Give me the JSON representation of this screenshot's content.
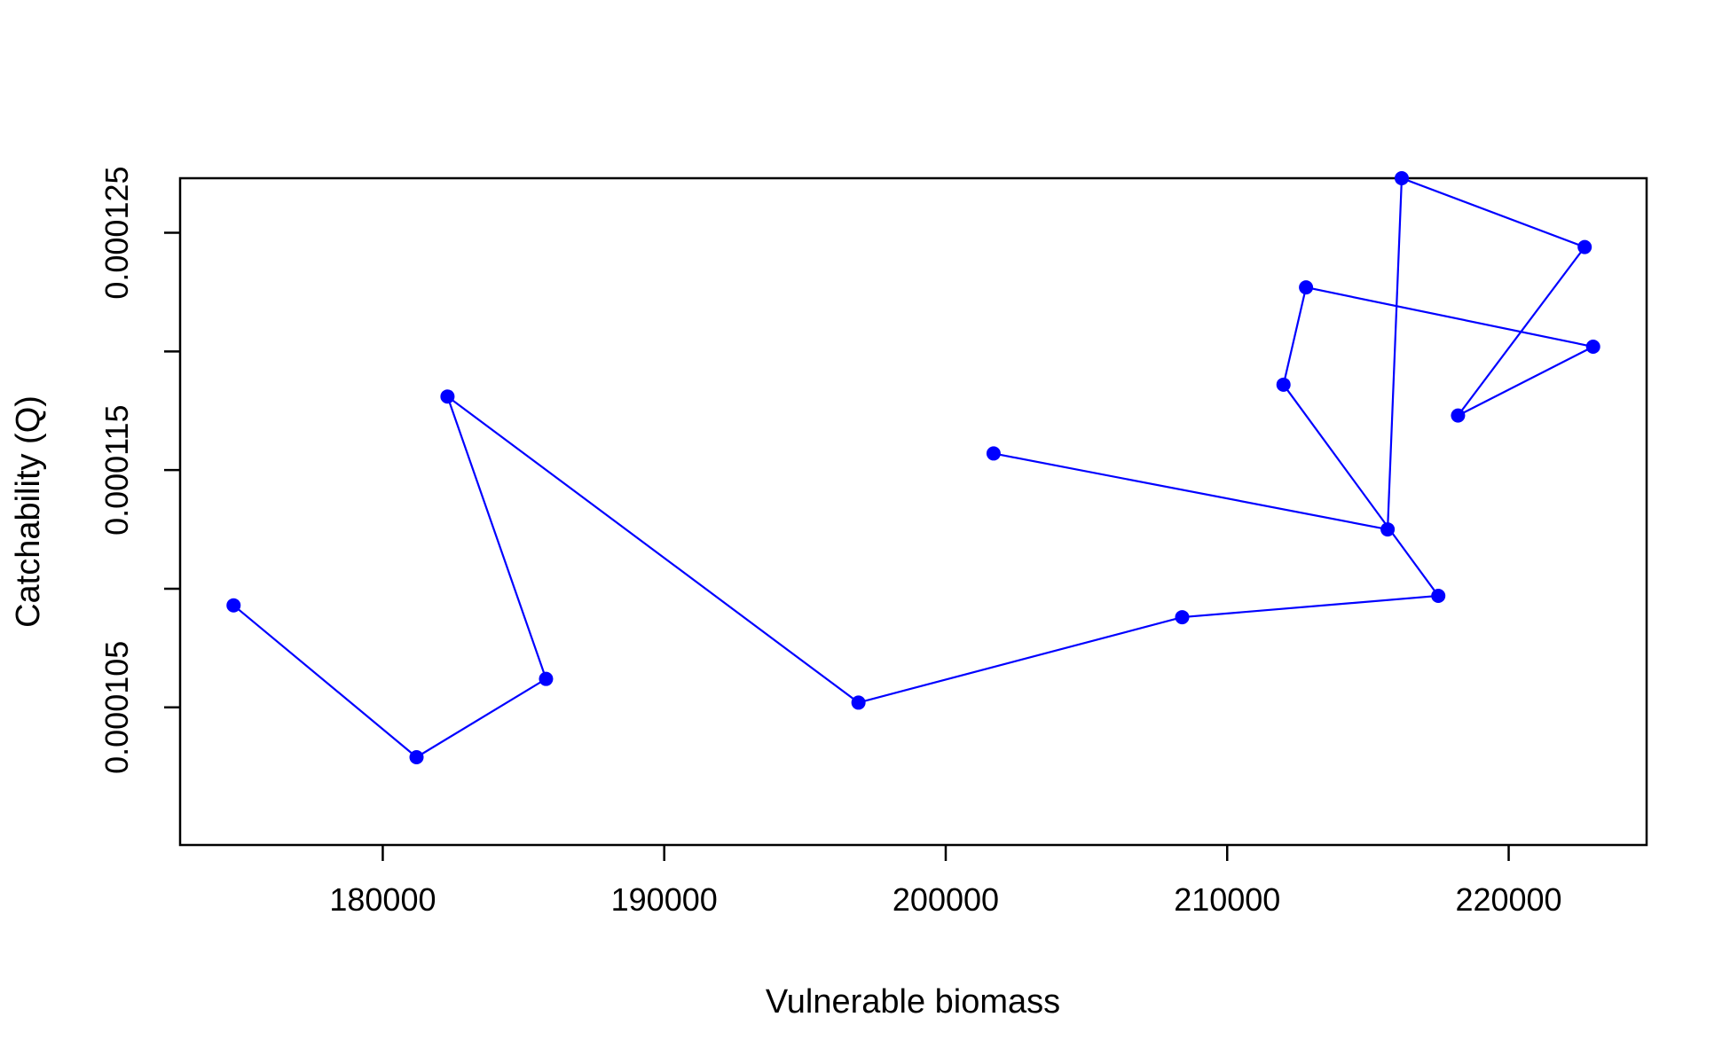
{
  "chart_data": {
    "type": "line",
    "title": "",
    "xlabel": "Vulnerable biomass",
    "ylabel": "Catchability (Q)",
    "xlim": [
      172800,
      224900
    ],
    "ylim": [
      9.92e-05,
      0.0001273
    ],
    "x_ticks": [
      180000,
      190000,
      200000,
      210000,
      220000
    ],
    "x_tick_labels": [
      "180000",
      "190000",
      "200000",
      "210000",
      "220000"
    ],
    "y_ticks": [
      0.000105,
      0.00011,
      0.000115,
      0.00012,
      0.000125
    ],
    "y_tick_labels": [
      "0.000105",
      "",
      "0.000115",
      "",
      "0.000125"
    ],
    "grid": false,
    "legend": "none",
    "colors": {
      "series": "#0000ff",
      "axis": "#000000"
    },
    "series": [
      {
        "x": [
          174700,
          181200,
          185800,
          182300,
          196900,
          208400,
          217500,
          212000,
          212800,
          223000,
          218200,
          222700,
          216200,
          215700,
          201700
        ],
        "y": [
          0.0001093,
          0.0001029,
          0.0001062,
          0.0001181,
          0.0001052,
          0.0001088,
          0.0001097,
          0.0001186,
          0.0001227,
          0.0001202,
          0.0001173,
          0.0001244,
          0.0001273,
          0.0001125,
          0.0001157
        ]
      }
    ]
  }
}
